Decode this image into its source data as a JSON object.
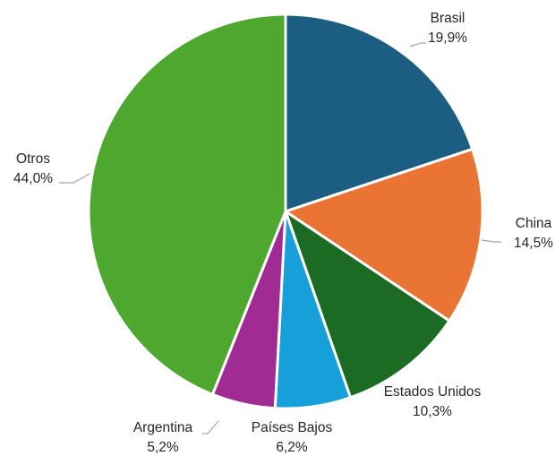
{
  "chart_data": {
    "type": "pie",
    "title": "",
    "slices": [
      {
        "label": "Brasil",
        "value": 19.9,
        "value_text": "19,9%",
        "color": "#1b5e82"
      },
      {
        "label": "China",
        "value": 14.5,
        "value_text": "14,5%",
        "color": "#e97433"
      },
      {
        "label": "Estados Unidos",
        "value": 10.3,
        "value_text": "10,3%",
        "color": "#1c6b25"
      },
      {
        "label": "Países Bajos",
        "value": 6.2,
        "value_text": "6,2%",
        "color": "#169fd9"
      },
      {
        "label": "Argentina",
        "value": 5.2,
        "value_text": "5,2%",
        "color": "#a02b93"
      },
      {
        "label": "Otros",
        "value": 44.0,
        "value_text": "44,0%",
        "color": "#4ea72e"
      }
    ],
    "start": "top",
    "direction": "clockwise",
    "data_labels": "outside with leader lines"
  }
}
